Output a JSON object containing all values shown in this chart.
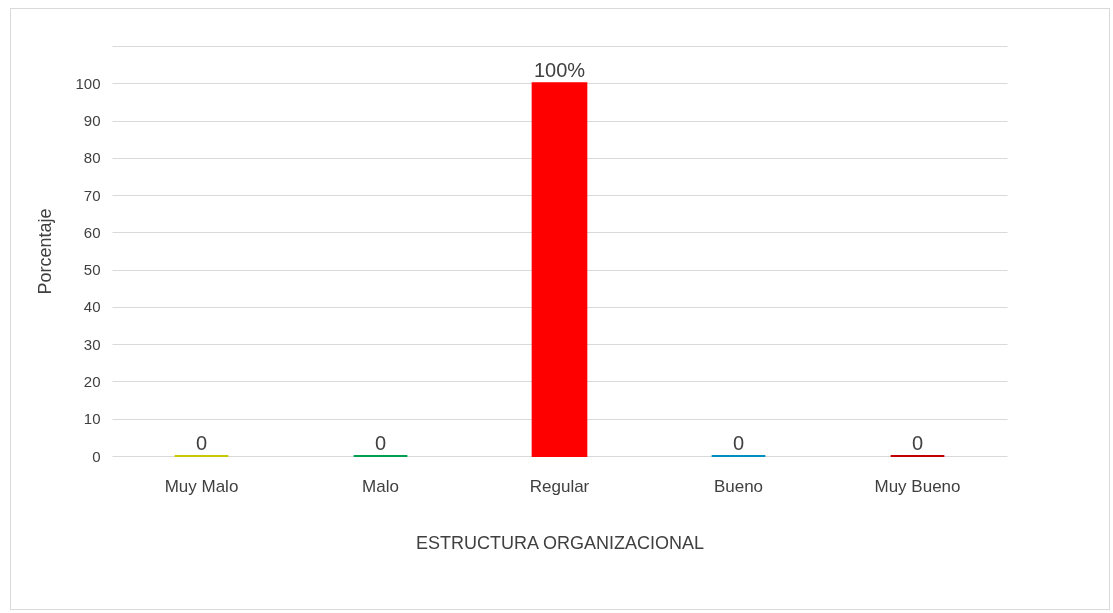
{
  "chart_data": {
    "type": "bar",
    "xlabel": "ESTRUCTURA ORGANIZACIONAL",
    "ylabel": "Porcentaje",
    "categories": [
      "Muy Malo",
      "Malo",
      "Regular",
      "Bueno",
      "Muy Bueno"
    ],
    "values": [
      0,
      0,
      100,
      0,
      0
    ],
    "colors": [
      "#c8c800",
      "#00a050",
      "#ff0000",
      "#0090c0",
      "#c00000"
    ],
    "value_labels": [
      "0",
      "0",
      "100%",
      "0",
      "0"
    ],
    "ylim": [
      0,
      110
    ],
    "yticks": [
      0,
      10,
      20,
      30,
      40,
      50,
      60,
      70,
      80,
      90,
      100,
      {
        "value": 110,
        "label": null
      }
    ],
    "grid": "y",
    "legend": false
  }
}
